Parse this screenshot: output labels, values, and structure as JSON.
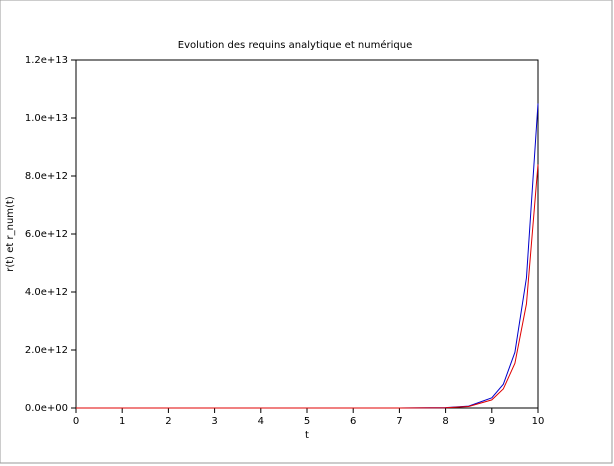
{
  "chart_data": {
    "type": "line",
    "title": "Evolution des requins analytique et numérique",
    "x_label": "t",
    "y_label": "r(t) et r_num(t)",
    "x": [
      0,
      1,
      2,
      3,
      4,
      5,
      6,
      7,
      8,
      8.5,
      9,
      9.25,
      9.5,
      9.75,
      10
    ],
    "series": [
      {
        "name": "r(t)",
        "color": "#0000cc",
        "values": [
          0.02,
          0.5,
          16,
          470,
          14000,
          430000,
          13000000,
          390000000,
          11700000000,
          64000000000,
          350000000000,
          820000000000,
          1920000000000,
          4490000000000,
          10500000000000
        ]
      },
      {
        "name": "r_num(t)",
        "color": "#e00000",
        "values": [
          0.02,
          0.4,
          13,
          380,
          11000,
          340000,
          10000000,
          310000000,
          9400000000,
          51000000000,
          280000000000,
          660000000000,
          1540000000000,
          3590000000000,
          8400000000000
        ]
      }
    ],
    "xlim": [
      0,
      10
    ],
    "xticks": [
      0,
      1,
      2,
      3,
      4,
      5,
      6,
      7,
      8,
      9,
      10
    ],
    "ylim": [
      0,
      12000000000000
    ],
    "yticks": [
      {
        "value": 0,
        "label": "0.0e+00"
      },
      {
        "value": 2000000000000,
        "label": "2.0e+12"
      },
      {
        "value": 4000000000000,
        "label": "4.0e+12"
      },
      {
        "value": 6000000000000,
        "label": "6.0e+12"
      },
      {
        "value": 8000000000000,
        "label": "8.0e+12"
      },
      {
        "value": 10000000000000,
        "label": "1.0e+13"
      },
      {
        "value": 12000000000000,
        "label": "1.2e+13"
      }
    ]
  }
}
